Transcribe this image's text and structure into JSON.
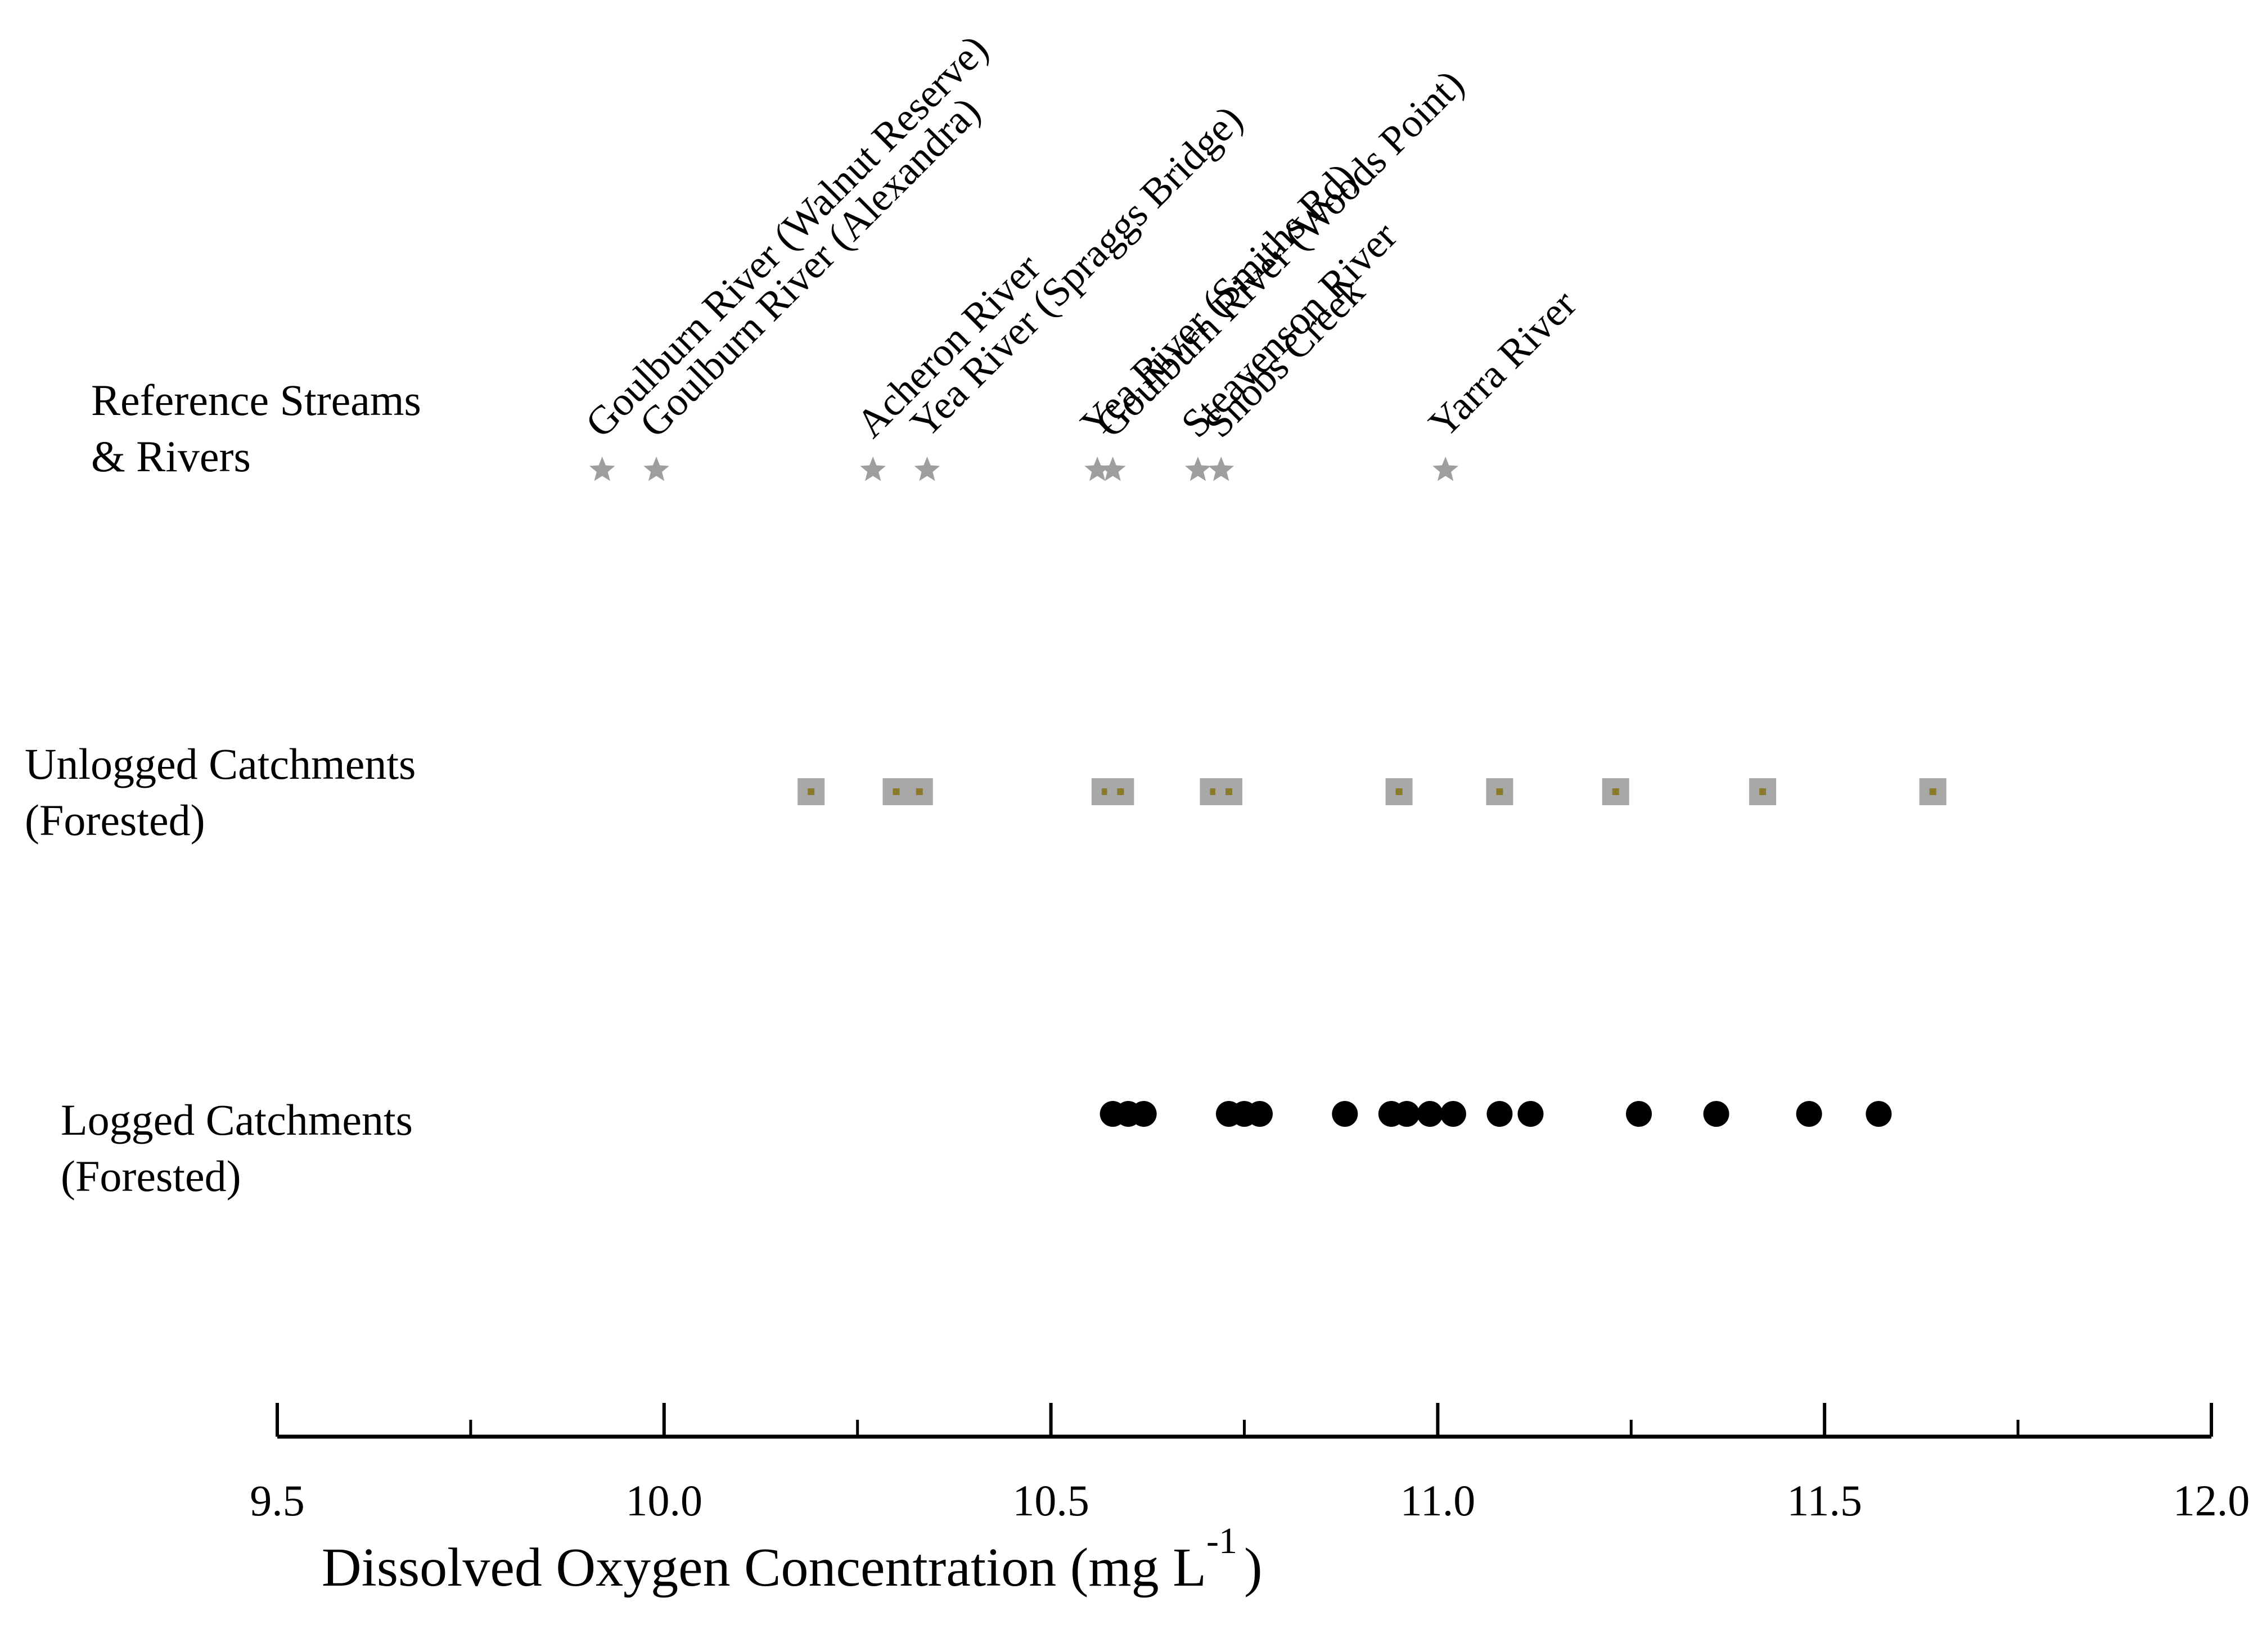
{
  "chart_data": {
    "type": "scatter",
    "title": "",
    "xlabel": "Dissolved Oxygen Concentration (mg L",
    "xlabel_superscript": "-1",
    "xlabel_close": ")",
    "xlim": [
      9.5,
      12.0
    ],
    "major_ticks": [
      9.5,
      10.0,
      10.5,
      11.0,
      11.5,
      12.0
    ],
    "tick_labels": [
      "9.5",
      "10.0",
      "10.5",
      "11.0",
      "11.5",
      "12.0"
    ],
    "minor_ticks": [
      9.75,
      10.25,
      10.75,
      11.25,
      11.75
    ],
    "grid": false,
    "series": [
      {
        "name": "Reference Streams & Rivers",
        "label_lines": [
          "Reference Streams",
          "& Rivers"
        ],
        "marker": "star",
        "color": "#9e9e9e",
        "points": [
          {
            "x": 9.92,
            "label": "Goulburn River (Walnut Reserve)"
          },
          {
            "x": 9.99,
            "label": "Goulburn River (Alexandra)"
          },
          {
            "x": 10.27,
            "label": "Acheron River"
          },
          {
            "x": 10.34,
            "label": "Yea River (Spraggs Bridge)"
          },
          {
            "x": 10.56,
            "label": "Yea River (Smiths Rd)"
          },
          {
            "x": 10.58,
            "label": "Goulburn River (Woods Point)"
          },
          {
            "x": 10.69,
            "label": "Steavenson River"
          },
          {
            "x": 10.72,
            "label": "Snobs Creek"
          },
          {
            "x": 11.01,
            "label": "Yarra River"
          }
        ]
      },
      {
        "name": "Unlogged Catchments (Forested)",
        "label_lines": [
          "Unlogged Catchments",
          "(Forested)"
        ],
        "marker": "square",
        "color": "#a8a8a8",
        "center_color": "#8a7a2a",
        "x": [
          10.19,
          10.3,
          10.33,
          10.57,
          10.59,
          10.71,
          10.73,
          10.95,
          11.08,
          11.23,
          11.42,
          11.64
        ]
      },
      {
        "name": "Logged Catchments (Forested)",
        "label_lines": [
          "Logged Catchments",
          "(Forested)"
        ],
        "marker": "circle",
        "color": "#000000",
        "x": [
          10.58,
          10.6,
          10.62,
          10.73,
          10.75,
          10.77,
          10.88,
          10.94,
          10.96,
          10.99,
          11.02,
          11.08,
          11.12,
          11.26,
          11.36,
          11.48,
          11.57
        ]
      }
    ]
  }
}
